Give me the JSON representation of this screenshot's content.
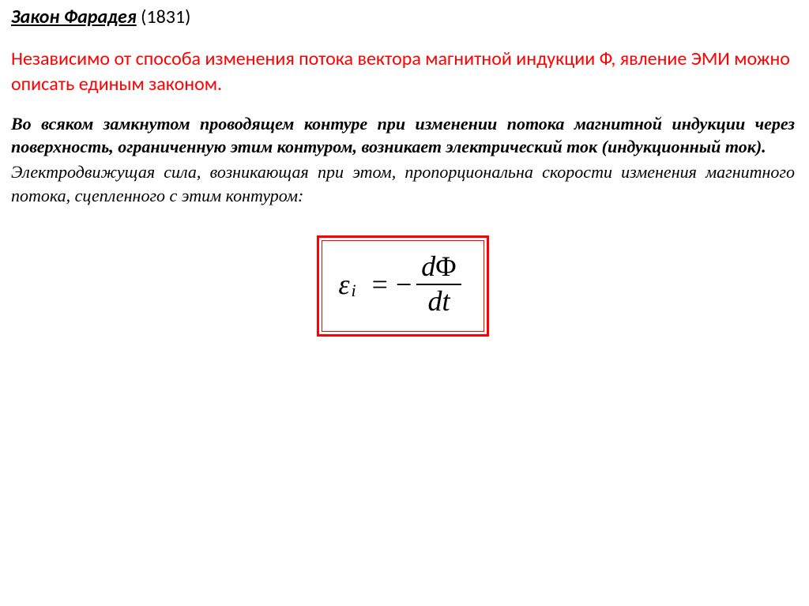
{
  "heading": {
    "title": "Закон Фарадея",
    "year": "(1831)"
  },
  "intro": "Независимо от способа изменения потока вектора магнитной индукции Ф, явление ЭМИ можно описать единым законом.",
  "definition_bold": "Во всяком замкнутом проводящем контуре при изменении потока магнитной индукции через поверхность, ограниченную этим контуром, возникает электрический ток (индукционный ток).",
  "definition_plain": " Электродвижущая сила, возникающая при этом, пропорциональна скорости изменения магнитного потока, сцепленного с этим контуром:",
  "formula": {
    "lhs_symbol": "ε",
    "lhs_sub": "i",
    "eq": "=",
    "sign": "−",
    "num": "dΦ",
    "den": "dt",
    "box_outer_color": "#ff0000",
    "box_inner_color": "#ff0000",
    "text_color": "#000000"
  },
  "colors": {
    "red": "#ff0000",
    "black": "#000000",
    "bg": "#ffffff"
  },
  "fonts": {
    "heading_family": "Calibri, Arial, sans-serif",
    "body_family": "Times New Roman, Times, serif",
    "heading_size_pt": 18,
    "intro_size_pt": 18,
    "definition_size_pt": 16,
    "formula_size_pt": 28
  }
}
